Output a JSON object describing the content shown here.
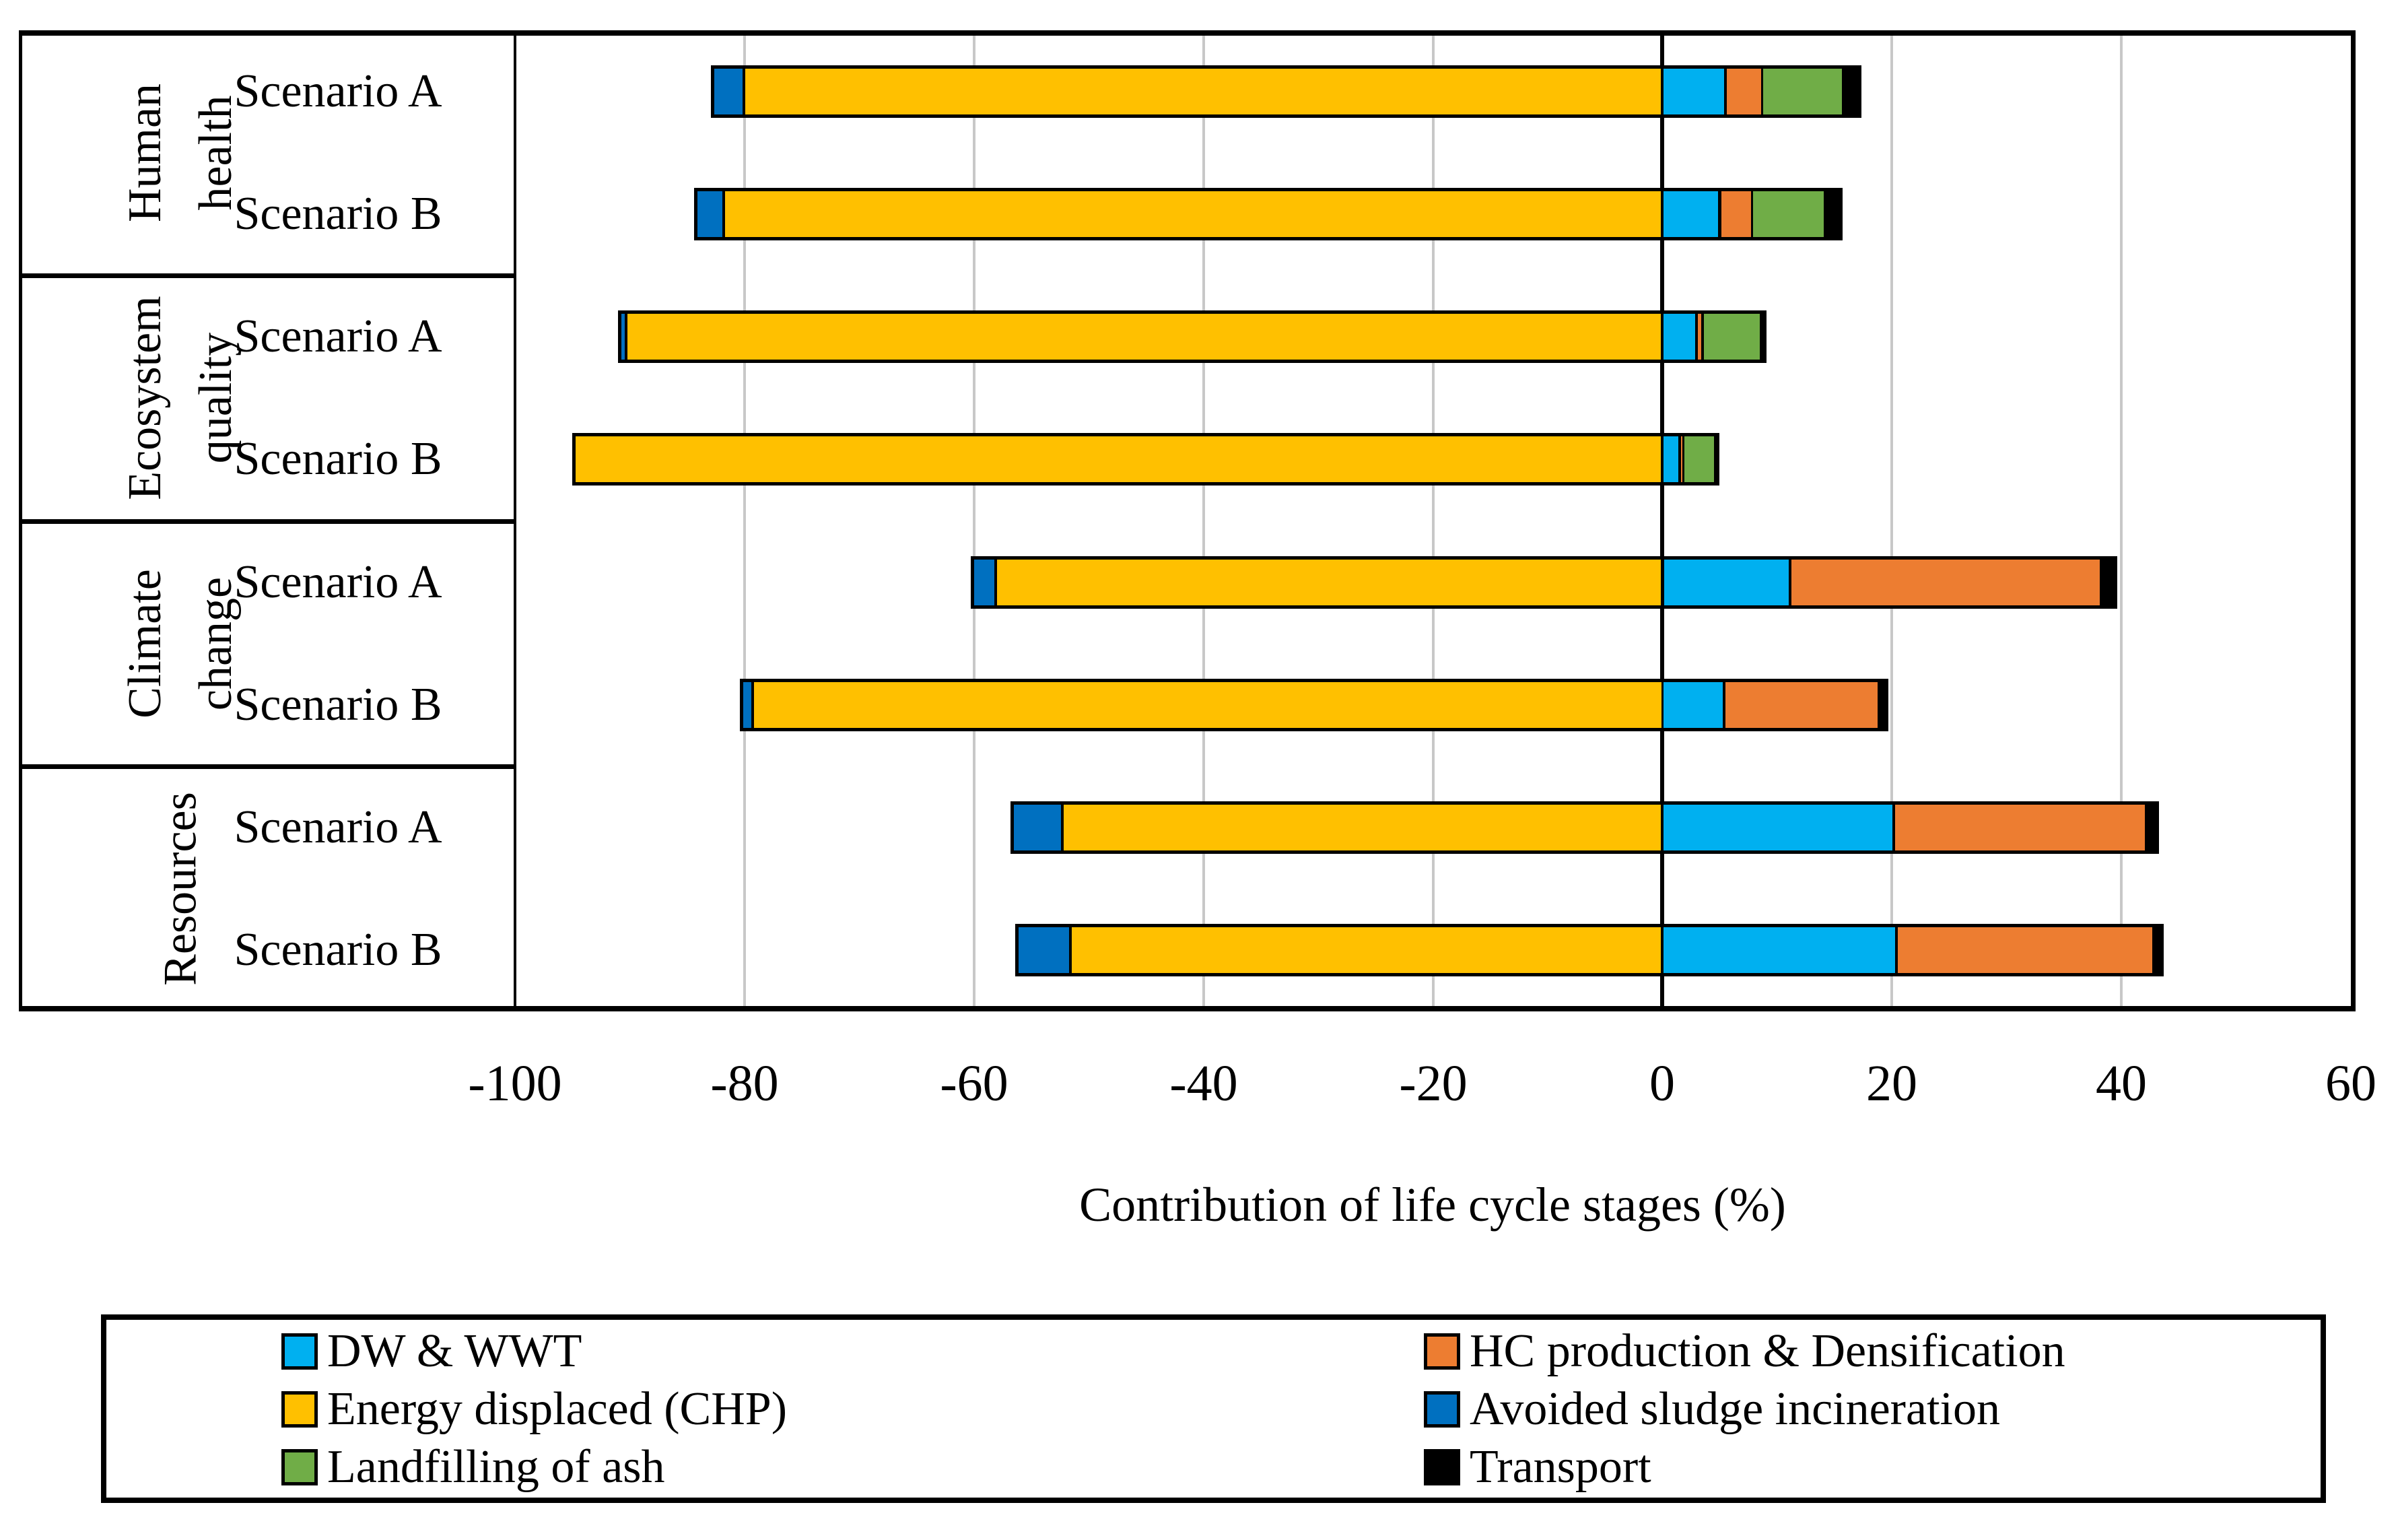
{
  "figure": {
    "axis_title": "Contribution of life cycle stages (%)",
    "x_tick_labels": [
      "-100",
      "-80",
      "-60",
      "-40",
      "-20",
      "0",
      "20",
      "40",
      "60"
    ],
    "groups": [
      {
        "lines": [
          "Human",
          "health"
        ]
      },
      {
        "lines": [
          "Ecosystem",
          "quality"
        ]
      },
      {
        "lines": [
          "Climate",
          "change"
        ]
      },
      {
        "lines": [
          "Resources"
        ]
      }
    ],
    "row_labels": [
      "Scenario A",
      "Scenario B"
    ],
    "legend_columns": [
      [
        "DW & WWT",
        "Energy displaced (CHP)",
        "Landfilling of ash"
      ],
      [
        "HC production & Densification",
        "Avoided sludge incineration",
        "Transport"
      ]
    ],
    "colors": {
      "DW & WWT": "#00B0F0",
      "Energy displaced (CHP)": "#FFC000",
      "Landfilling of ash": "#70AD47",
      "HC production & Densification": "#ED7D31",
      "Avoided sludge incineration": "#0070C0",
      "Transport": "#000000",
      "gridline": "#C8C8C8",
      "axis": "#000000"
    }
  },
  "chart_data": {
    "type": "bar",
    "orientation": "horizontal-stacked",
    "xlabel": "Contribution of life cycle stages (%)",
    "xlim": [
      -100,
      60
    ],
    "xticks": [
      -100,
      -80,
      -60,
      -40,
      -20,
      0,
      20,
      40,
      60
    ],
    "grid": true,
    "legend_position": "bottom",
    "category_groups": [
      "Human health",
      "Ecosystem quality",
      "Climate change",
      "Resources"
    ],
    "categories": [
      "Human health - Scenario A",
      "Human health - Scenario B",
      "Ecosystem quality - Scenario A",
      "Ecosystem quality - Scenario B",
      "Climate change - Scenario A",
      "Climate change - Scenario B",
      "Resources - Scenario A",
      "Resources - Scenario B"
    ],
    "series": [
      {
        "name": "DW & WWT",
        "color": "#00B0F0",
        "values": [
          5.5,
          5.0,
          3.0,
          1.5,
          11.1,
          5.4,
          20.2,
          20.4
        ]
      },
      {
        "name": "Energy displaced (CHP)",
        "color": "#FFC000",
        "values": [
          -80.0,
          -81.8,
          -90.3,
          -95.0,
          -58.1,
          -79.3,
          -52.3,
          -51.6
        ]
      },
      {
        "name": "Landfilling of ash",
        "color": "#70AD47",
        "values": [
          7.1,
          6.4,
          5.1,
          2.8,
          0,
          0,
          0,
          0
        ]
      },
      {
        "name": "HC production & Densification",
        "color": "#ED7D31",
        "values": [
          3.2,
          2.8,
          0.5,
          0.3,
          27.1,
          13.5,
          22.0,
          22.4
        ]
      },
      {
        "name": "Avoided sludge incineration",
        "color": "#0070C0",
        "values": [
          -2.9,
          -2.6,
          -0.7,
          0,
          -2.2,
          -1.1,
          -4.5,
          -4.8
        ]
      },
      {
        "name": "Transport",
        "color": "#000000",
        "values": [
          1.6,
          1.5,
          0.5,
          0.4,
          1.4,
          0.8,
          1.1,
          0.9
        ]
      }
    ],
    "positive_stack_order": [
      "DW & WWT",
      "HC production & Densification",
      "Landfilling of ash",
      "Transport"
    ],
    "negative_stack_order": [
      "Energy displaced (CHP)",
      "Avoided sludge incineration"
    ]
  }
}
